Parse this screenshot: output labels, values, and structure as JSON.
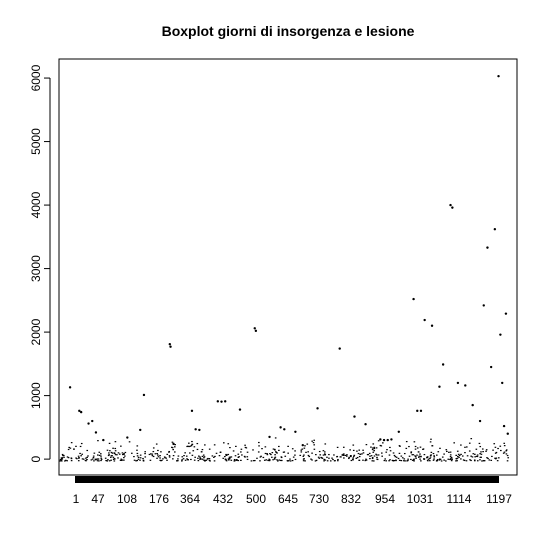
{
  "chart_data": {
    "type": "scatter",
    "title": "Boxplot giorni di insorgenza e lesione",
    "xlabel": "",
    "ylabel": "",
    "xlim": [
      0,
      1240
    ],
    "ylim": [
      -250,
      6300
    ],
    "grid": false,
    "legend": "none",
    "x_tick_labels": [
      "1",
      "47",
      "108",
      "176",
      "364",
      "432",
      "500",
      "645",
      "730",
      "832",
      "954",
      "1031",
      "1114",
      "1197"
    ],
    "y_ticks": [
      0,
      1000,
      2000,
      3000,
      4000,
      5000,
      6000
    ],
    "y_tick_labels": [
      "0",
      "1000",
      "2000",
      "3000",
      "4000",
      "5000",
      "6000"
    ],
    "colors": {
      "points": "#000000",
      "axes": "#000000",
      "background": "#ffffff"
    },
    "series": [
      {
        "values": [
          [
            30,
            1130
          ],
          [
            55,
            760
          ],
          [
            60,
            740
          ],
          [
            80,
            560
          ],
          [
            90,
            600
          ],
          [
            100,
            420
          ],
          [
            120,
            300
          ],
          [
            185,
            340
          ],
          [
            220,
            460
          ],
          [
            230,
            1010
          ],
          [
            300,
            1810
          ],
          [
            302,
            1770
          ],
          [
            310,
            240
          ],
          [
            360,
            760
          ],
          [
            370,
            470
          ],
          [
            380,
            460
          ],
          [
            430,
            910
          ],
          [
            440,
            905
          ],
          [
            450,
            910
          ],
          [
            490,
            780
          ],
          [
            530,
            2060
          ],
          [
            533,
            2020
          ],
          [
            570,
            350
          ],
          [
            600,
            500
          ],
          [
            610,
            470
          ],
          [
            640,
            430
          ],
          [
            660,
            220
          ],
          [
            700,
            800
          ],
          [
            760,
            1740
          ],
          [
            800,
            670
          ],
          [
            830,
            550
          ],
          [
            870,
            310
          ],
          [
            880,
            300
          ],
          [
            890,
            300
          ],
          [
            900,
            310
          ],
          [
            920,
            430
          ],
          [
            960,
            2520
          ],
          [
            970,
            760
          ],
          [
            980,
            760
          ],
          [
            990,
            2190
          ],
          [
            1010,
            2100
          ],
          [
            1030,
            1140
          ],
          [
            1040,
            1490
          ],
          [
            1060,
            4000
          ],
          [
            1065,
            3960
          ],
          [
            1080,
            1200
          ],
          [
            1100,
            1160
          ],
          [
            1120,
            850
          ],
          [
            1140,
            600
          ],
          [
            1150,
            2420
          ],
          [
            1160,
            3330
          ],
          [
            1170,
            1450
          ],
          [
            1180,
            3620
          ],
          [
            1190,
            6030
          ],
          [
            1195,
            1960
          ],
          [
            1200,
            1200
          ],
          [
            1205,
            520
          ],
          [
            1210,
            2290
          ],
          [
            1215,
            400
          ]
        ]
      }
    ]
  }
}
